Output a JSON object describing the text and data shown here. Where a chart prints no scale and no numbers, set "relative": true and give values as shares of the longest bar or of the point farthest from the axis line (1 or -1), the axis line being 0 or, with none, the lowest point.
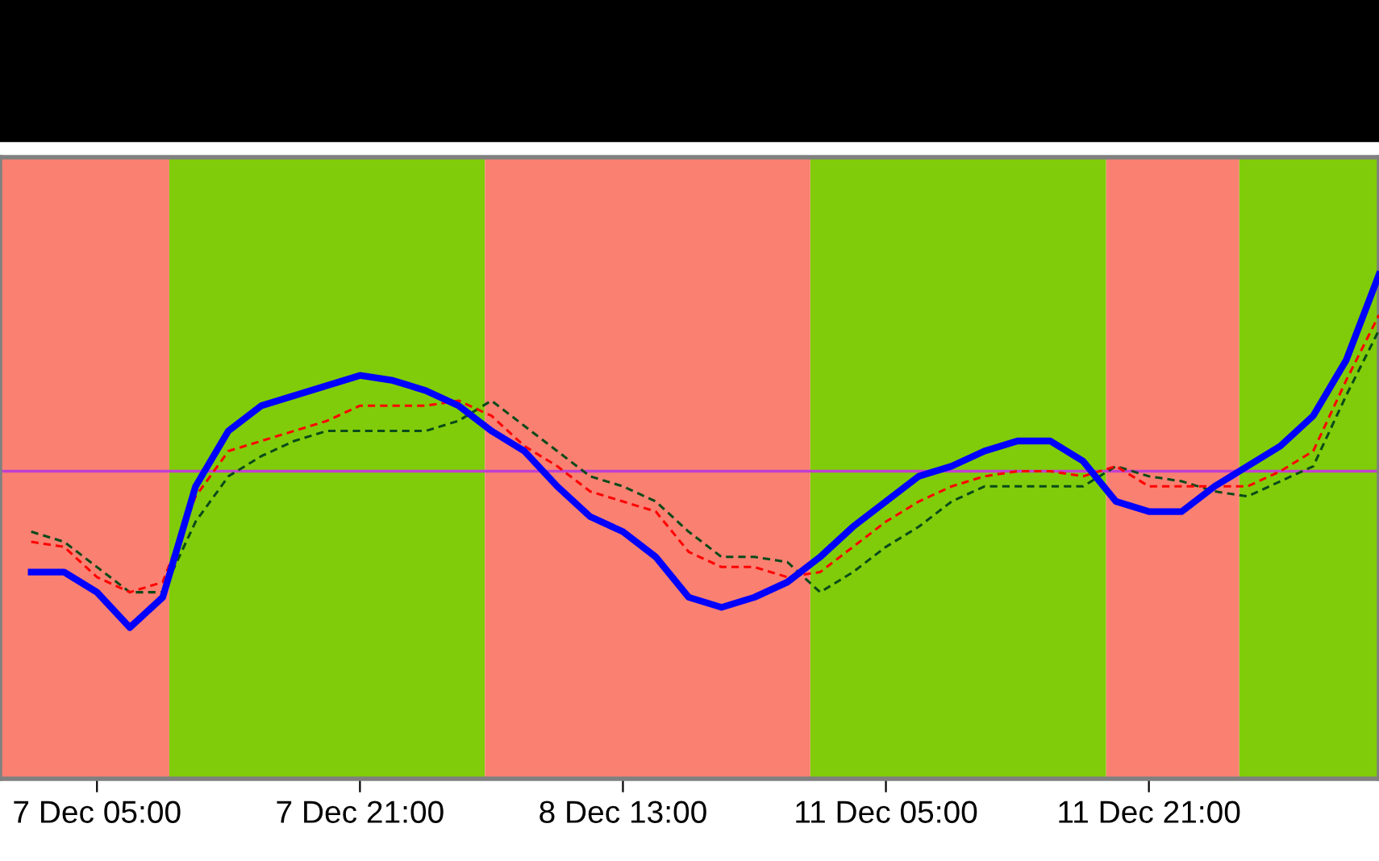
{
  "chart_data": {
    "type": "line",
    "relative": true,
    "categories": [
      null,
      null,
      "7 Dec 05:00",
      null,
      null,
      null,
      null,
      null,
      null,
      null,
      "7 Dec 21:00",
      null,
      null,
      null,
      null,
      null,
      null,
      null,
      "8 Dec 13:00",
      null,
      null,
      null,
      null,
      null,
      null,
      null,
      "11 Dec 05:00",
      null,
      null,
      null,
      null,
      null,
      null,
      null,
      "11 Dec 21:00",
      null,
      null,
      null,
      null,
      null,
      null,
      null
    ],
    "grid": false,
    "legend": false,
    "marker": "none",
    "ref_lines": [
      {
        "axis": "y",
        "value": 0.61,
        "color": "#c040d0",
        "line_style": "solid"
      }
    ],
    "series": [
      {
        "color": "#0000ff",
        "line_style": "solid",
        "values": [
          0.41,
          0.41,
          0.37,
          0.3,
          0.36,
          0.58,
          0.69,
          0.74,
          0.76,
          0.78,
          0.8,
          0.79,
          0.77,
          0.74,
          0.69,
          0.65,
          0.58,
          0.52,
          0.49,
          0.44,
          0.36,
          0.34,
          0.36,
          0.39,
          0.44,
          0.5,
          0.55,
          0.6,
          0.62,
          0.65,
          0.67,
          0.67,
          0.63,
          0.55,
          0.53,
          0.53,
          0.58,
          0.62,
          0.66,
          0.72,
          0.83,
          1
        ]
      },
      {
        "color": "#ff0000",
        "line_style": "dashed",
        "values": [
          0.47,
          0.46,
          0.4,
          0.37,
          0.39,
          0.56,
          0.65,
          0.67,
          0.69,
          0.71,
          0.74,
          0.74,
          0.74,
          0.75,
          0.72,
          0.66,
          0.62,
          0.57,
          0.55,
          0.53,
          0.45,
          0.42,
          0.42,
          0.4,
          0.41,
          0.46,
          0.51,
          0.55,
          0.58,
          0.6,
          0.61,
          0.61,
          0.6,
          0.62,
          0.58,
          0.58,
          0.58,
          0.58,
          0.61,
          0.65,
          0.79,
          0.92
        ]
      },
      {
        "color": "#0a4a1a",
        "line_style": "dashed",
        "values": [
          0.49,
          0.47,
          0.42,
          0.37,
          0.37,
          0.51,
          0.6,
          0.64,
          0.67,
          0.69,
          0.69,
          0.69,
          0.69,
          0.71,
          0.75,
          0.7,
          0.65,
          0.6,
          0.58,
          0.55,
          0.49,
          0.44,
          0.44,
          0.43,
          0.37,
          0.41,
          0.46,
          0.5,
          0.55,
          0.58,
          0.58,
          0.58,
          0.58,
          0.62,
          0.6,
          0.59,
          0.57,
          0.56,
          0.59,
          0.62,
          0.76,
          0.89
        ]
      }
    ]
  }
}
